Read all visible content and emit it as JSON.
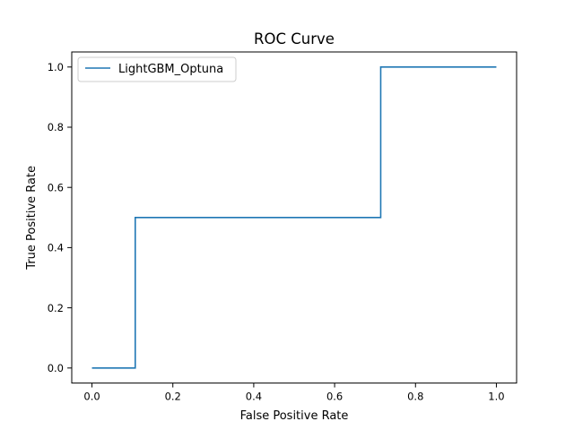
{
  "chart_data": {
    "type": "line",
    "title": "ROC Curve",
    "xlabel": "False Positive Rate",
    "ylabel": "True Positive Rate",
    "xlim": [
      -0.05,
      1.05
    ],
    "ylim": [
      -0.05,
      1.05
    ],
    "xticks": [
      0.0,
      0.2,
      0.4,
      0.6,
      0.8,
      1.0
    ],
    "xtick_labels": [
      "0.0",
      "0.2",
      "0.4",
      "0.6",
      "0.8",
      "1.0"
    ],
    "yticks": [
      0.0,
      0.2,
      0.4,
      0.6,
      0.8,
      1.0
    ],
    "ytick_labels": [
      "0.0",
      "0.2",
      "0.4",
      "0.6",
      "0.8",
      "1.0"
    ],
    "grid": false,
    "legend_position": "upper left",
    "series": [
      {
        "name": "LightGBM_Optuna",
        "color": "#1f77b4",
        "x": [
          0.0,
          0.107,
          0.107,
          0.714,
          0.714,
          1.0
        ],
        "y": [
          0.0,
          0.0,
          0.5,
          0.5,
          1.0,
          1.0
        ]
      }
    ]
  }
}
